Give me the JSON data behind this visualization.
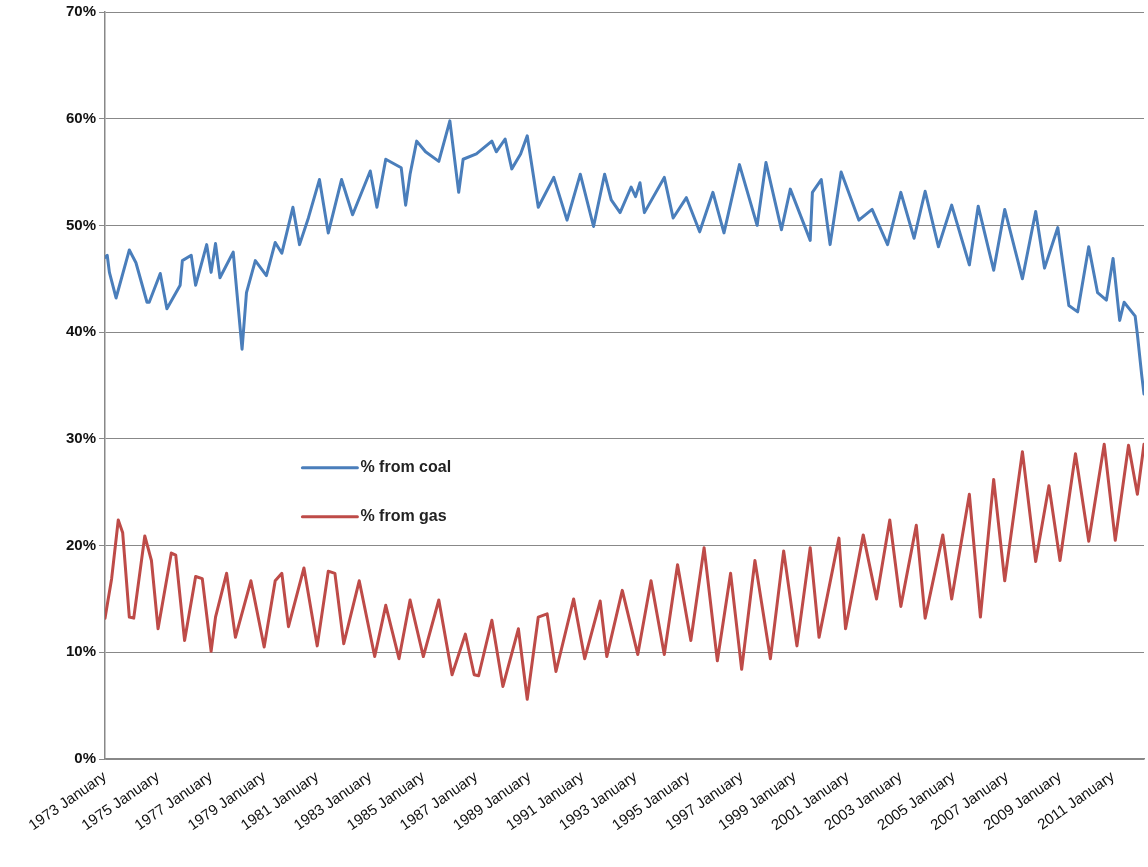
{
  "chart_data": {
    "type": "line",
    "xlim": [
      "1973-01",
      "2012-03"
    ],
    "xticks": [
      {
        "value": "1973-01",
        "label": "1973 January"
      },
      {
        "value": "1975-01",
        "label": "1975 January"
      },
      {
        "value": "1977-01",
        "label": "1977 January"
      },
      {
        "value": "1979-01",
        "label": "1979 January"
      },
      {
        "value": "1981-01",
        "label": "1981 January"
      },
      {
        "value": "1983-01",
        "label": "1983 January"
      },
      {
        "value": "1985-01",
        "label": "1985 January"
      },
      {
        "value": "1987-01",
        "label": "1987 January"
      },
      {
        "value": "1989-01",
        "label": "1989 January"
      },
      {
        "value": "1991-01",
        "label": "1991 January"
      },
      {
        "value": "1993-01",
        "label": "1993 January"
      },
      {
        "value": "1995-01",
        "label": "1995 January"
      },
      {
        "value": "1997-01",
        "label": "1997 January"
      },
      {
        "value": "1999-01",
        "label": "1999 January"
      },
      {
        "value": "2001-01",
        "label": "2001 January"
      },
      {
        "value": "2003-01",
        "label": "2003 January"
      },
      {
        "value": "2005-01",
        "label": "2005 January"
      },
      {
        "value": "2007-01",
        "label": "2007 January"
      },
      {
        "value": "2009-01",
        "label": "2009 January"
      },
      {
        "value": "2011-01",
        "label": "2011 January"
      }
    ],
    "ylim": [
      0,
      70
    ],
    "yticks": [
      {
        "value": 0,
        "label": "0%"
      },
      {
        "value": 10,
        "label": "10%"
      },
      {
        "value": 20,
        "label": "20%"
      },
      {
        "value": 30,
        "label": "30%"
      },
      {
        "value": 40,
        "label": "40%"
      },
      {
        "value": 50,
        "label": "50%"
      },
      {
        "value": 60,
        "label": "60%"
      },
      {
        "value": 70,
        "label": "70%"
      }
    ],
    "grid": "y",
    "legend": "center",
    "marker": "none",
    "line_style": "solid",
    "series": [
      {
        "name": "% from coal",
        "color": "#4a7ebb",
        "x": [
          "1973-01",
          "1973-02",
          "1973-03",
          "1973-06",
          "1973-12",
          "1974-03",
          "1974-08",
          "1974-09",
          "1975-02",
          "1975-05",
          "1975-11",
          "1975-12",
          "1976-04",
          "1976-06",
          "1976-11",
          "1977-01",
          "1977-03",
          "1977-05",
          "1977-11",
          "1978-03",
          "1978-05",
          "1978-09",
          "1979-02",
          "1979-06",
          "1979-09",
          "1980-02",
          "1980-05",
          "1980-09",
          "1981-02",
          "1981-06",
          "1981-12",
          "1982-05",
          "1983-01",
          "1983-04",
          "1983-08",
          "1984-03",
          "1984-05",
          "1984-07",
          "1984-10",
          "1985-02",
          "1985-08",
          "1986-01",
          "1986-05",
          "1986-07",
          "1987-01",
          "1987-08",
          "1987-10",
          "1988-02",
          "1988-05",
          "1988-09",
          "1988-12",
          "1989-05",
          "1989-12",
          "1990-06",
          "1990-12",
          "1991-06",
          "1991-11",
          "1992-02",
          "1992-06",
          "1992-11",
          "1993-01",
          "1993-03",
          "1993-05",
          "1994-02",
          "1994-06",
          "1994-12",
          "1995-06",
          "1995-12",
          "1996-05",
          "1996-12",
          "1997-08",
          "1997-12",
          "1998-07",
          "1998-11",
          "1999-08",
          "1999-09",
          "2000-01",
          "2000-05",
          "2000-10",
          "2001-06",
          "2001-12",
          "2002-07",
          "2003-01",
          "2003-07",
          "2003-12",
          "2004-06",
          "2004-12",
          "2005-08",
          "2005-12",
          "2006-07",
          "2006-12",
          "2007-08",
          "2008-02",
          "2008-06",
          "2008-12",
          "2009-05",
          "2009-09",
          "2010-02",
          "2010-06",
          "2010-10",
          "2011-01",
          "2011-04",
          "2011-06",
          "2011-11",
          "2011-12",
          "2012-02",
          "2012-03"
        ],
        "values": [
          47.0,
          47.2,
          45.6,
          43.2,
          47.7,
          46.5,
          42.8,
          42.8,
          45.5,
          42.2,
          44.4,
          46.7,
          47.2,
          44.4,
          48.2,
          45.6,
          48.3,
          45.1,
          47.5,
          38.4,
          43.7,
          46.7,
          45.3,
          48.4,
          47.4,
          51.7,
          48.2,
          50.7,
          54.3,
          49.3,
          54.3,
          51.0,
          55.1,
          51.7,
          56.2,
          55.4,
          51.9,
          54.8,
          57.9,
          56.9,
          56.0,
          59.8,
          53.1,
          56.2,
          56.7,
          57.9,
          56.9,
          58.1,
          55.3,
          56.7,
          58.4,
          51.7,
          54.5,
          50.5,
          54.8,
          49.9,
          54.8,
          52.4,
          51.2,
          53.6,
          52.7,
          54.0,
          51.2,
          54.5,
          50.7,
          52.6,
          49.4,
          53.1,
          49.3,
          55.7,
          50.0,
          55.9,
          49.6,
          53.4,
          48.6,
          53.1,
          54.3,
          48.2,
          55.0,
          50.5,
          51.5,
          48.2,
          53.1,
          48.8,
          53.2,
          48.0,
          51.9,
          46.3,
          51.8,
          45.8,
          51.5,
          45.0,
          51.3,
          46.0,
          49.8,
          42.5,
          41.9,
          48.0,
          43.7,
          43.0,
          46.9,
          41.1,
          42.8,
          41.5,
          39.8,
          35.9,
          34.2
        ]
      },
      {
        "name": "% from gas",
        "color": "#be4b48",
        "x": [
          "1973-01",
          "1973-04",
          "1973-07",
          "1973-09",
          "1973-12",
          "1974-02",
          "1974-07",
          "1974-10",
          "1975-01",
          "1975-07",
          "1975-09",
          "1976-01",
          "1976-06",
          "1976-09",
          "1977-01",
          "1977-03",
          "1977-08",
          "1977-12",
          "1978-07",
          "1979-01",
          "1979-06",
          "1979-09",
          "1979-12",
          "1980-07",
          "1981-01",
          "1981-06",
          "1981-09",
          "1982-01",
          "1982-08",
          "1983-03",
          "1983-08",
          "1984-02",
          "1984-07",
          "1985-01",
          "1985-08",
          "1986-02",
          "1986-08",
          "1986-12",
          "1987-02",
          "1987-08",
          "1988-01",
          "1988-08",
          "1988-12",
          "1989-05",
          "1989-09",
          "1990-01",
          "1990-09",
          "1991-02",
          "1991-09",
          "1991-12",
          "1992-07",
          "1993-02",
          "1993-08",
          "1994-02",
          "1994-08",
          "1995-02",
          "1995-08",
          "1996-02",
          "1996-08",
          "1997-01",
          "1997-07",
          "1998-02",
          "1998-08",
          "1999-02",
          "1999-08",
          "1999-12",
          "2000-09",
          "2000-12",
          "2001-08",
          "2002-02",
          "2002-08",
          "2003-01",
          "2003-08",
          "2003-12",
          "2004-08",
          "2004-12",
          "2005-08",
          "2006-01",
          "2006-07",
          "2006-12",
          "2007-08",
          "2008-02",
          "2008-08",
          "2009-01",
          "2009-08",
          "2010-02",
          "2010-09",
          "2011-02",
          "2011-08",
          "2011-12",
          "2012-03"
        ],
        "values": [
          13.2,
          16.9,
          22.4,
          21.2,
          13.3,
          13.2,
          20.9,
          18.6,
          12.2,
          19.3,
          19.1,
          11.1,
          17.1,
          16.9,
          10.1,
          13.3,
          17.4,
          11.4,
          16.7,
          10.5,
          16.7,
          17.4,
          12.4,
          17.9,
          10.6,
          17.6,
          17.4,
          10.8,
          16.7,
          9.6,
          14.4,
          9.4,
          14.9,
          9.6,
          14.9,
          7.9,
          11.7,
          7.9,
          7.8,
          13.0,
          6.8,
          12.2,
          5.6,
          13.3,
          13.6,
          8.2,
          15.0,
          9.4,
          14.8,
          9.6,
          15.8,
          9.8,
          16.7,
          9.8,
          18.2,
          11.1,
          19.8,
          9.2,
          17.4,
          8.4,
          18.6,
          9.4,
          19.5,
          10.6,
          19.8,
          11.4,
          20.7,
          12.2,
          21.0,
          15.0,
          22.4,
          14.3,
          21.9,
          13.2,
          21.0,
          15.0,
          24.8,
          13.3,
          26.2,
          16.7,
          28.8,
          18.5,
          25.6,
          18.6,
          28.6,
          20.4,
          29.5,
          20.5,
          29.4,
          24.8,
          29.5
        ]
      }
    ]
  }
}
